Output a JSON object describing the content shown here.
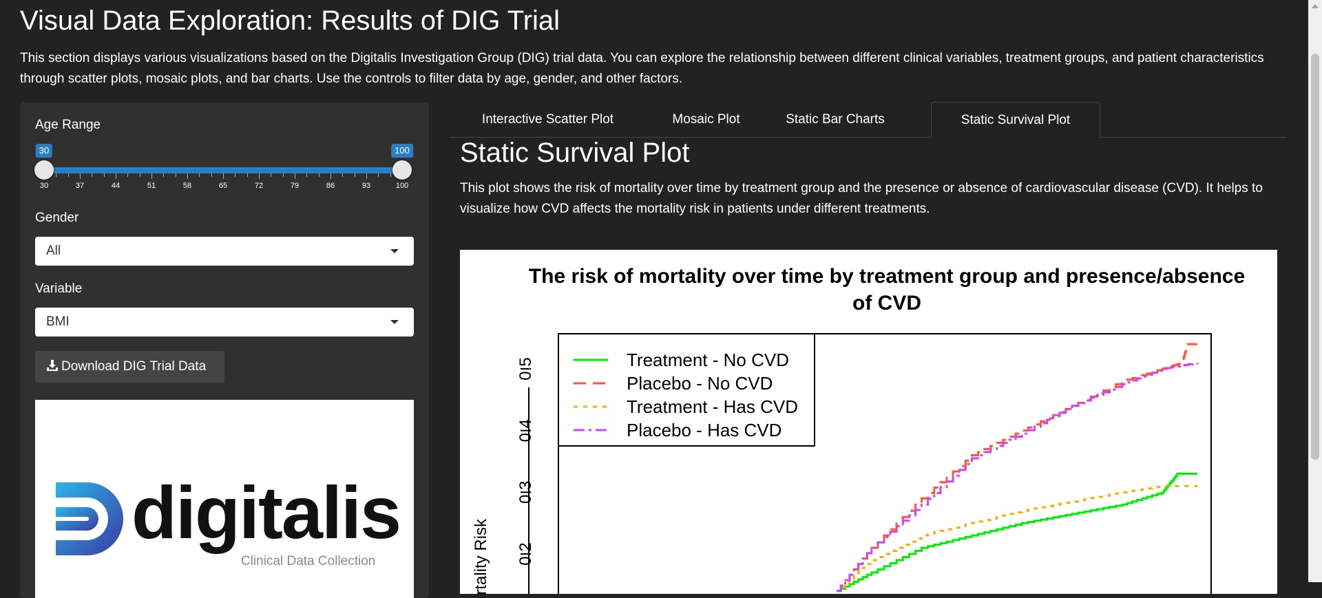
{
  "header": {
    "title": "Visual Data Exploration: Results of DIG Trial",
    "intro": "This section displays various visualizations based on the Digitalis Investigation Group (DIG) trial data. You can explore the relationship between different clinical variables, treatment groups, and patient characteristics through scatter plots, mosaic plots, and bar charts. Use the controls to filter data by age, gender, and other factors."
  },
  "sidebar": {
    "age_range": {
      "label": "Age Range",
      "min": 30,
      "max": 100,
      "selected_low": "30",
      "selected_high": "100",
      "tick_labels": [
        "30",
        "37",
        "44",
        "51",
        "58",
        "65",
        "72",
        "79",
        "86",
        "93",
        "100"
      ]
    },
    "gender": {
      "label": "Gender",
      "value": "All"
    },
    "variable": {
      "label": "Variable",
      "value": "BMI"
    },
    "download_label": "Download DIG Trial Data",
    "logo": {
      "word": "digitalis",
      "tagline": "Clinical Data Collection"
    }
  },
  "tabs": [
    {
      "label": "Interactive Scatter Plot",
      "active": false
    },
    {
      "label": "Mosaic Plot",
      "active": false
    },
    {
      "label": "Static Bar Charts",
      "active": false
    },
    {
      "label": "Static Survival Plot",
      "active": true
    }
  ],
  "panel": {
    "title": "Static Survival Plot",
    "description": "This plot shows the risk of mortality over time by treatment group and the presence or absence of cardiovascular disease (CVD). It helps to visualize how CVD affects the mortality risk in patients under different treatments."
  },
  "chart_data": {
    "type": "line",
    "title_line1": "The risk of mortality over time by treatment group and presence/absence",
    "title_line2": "of CVD",
    "ylabel": "Mortality Risk",
    "y_ticks": [
      "0.2",
      "0.3",
      "0.4",
      "0.5"
    ],
    "ylim": [
      0.13,
      0.56
    ],
    "xlim": [
      0,
      1
    ],
    "step": true,
    "legend_position": "top-left",
    "series": [
      {
        "name": "Treatment - No CVD",
        "color": "#00ee00",
        "dash": "solid",
        "x": [
          0.28,
          0.35,
          0.45,
          0.55,
          0.65,
          0.75,
          0.85,
          0.93,
          0.96,
          1.0
        ],
        "y": [
          0.14,
          0.17,
          0.21,
          0.23,
          0.25,
          0.265,
          0.28,
          0.3,
          0.33,
          0.33
        ]
      },
      {
        "name": "Placebo - No CVD",
        "color": "#ff5533",
        "dash": "dashed",
        "x": [
          0.28,
          0.35,
          0.45,
          0.55,
          0.65,
          0.75,
          0.85,
          0.93,
          0.97,
          0.98,
          1.0
        ],
        "y": [
          0.14,
          0.21,
          0.29,
          0.36,
          0.4,
          0.44,
          0.48,
          0.5,
          0.51,
          0.54,
          0.54
        ]
      },
      {
        "name": "Treatment - Has CVD",
        "color": "#ffaa00",
        "dash": "dotted",
        "x": [
          0.28,
          0.35,
          0.45,
          0.55,
          0.65,
          0.75,
          0.85,
          0.93,
          1.0
        ],
        "y": [
          0.14,
          0.19,
          0.23,
          0.25,
          0.27,
          0.285,
          0.3,
          0.31,
          0.31
        ]
      },
      {
        "name": "Placebo - Has CVD",
        "color": "#cc44ff",
        "dash": "dashdot",
        "x": [
          0.28,
          0.35,
          0.45,
          0.55,
          0.65,
          0.75,
          0.85,
          0.93,
          1.0
        ],
        "y": [
          0.14,
          0.21,
          0.28,
          0.355,
          0.395,
          0.44,
          0.475,
          0.5,
          0.51
        ]
      }
    ]
  },
  "colors": {
    "accent": "#2a7ec4",
    "background": "#222222",
    "sidebar": "#303030"
  }
}
